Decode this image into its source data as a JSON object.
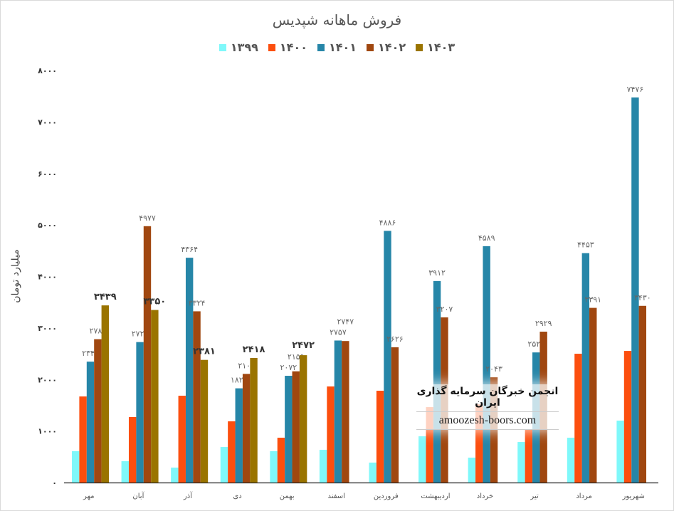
{
  "chart_data": {
    "type": "bar",
    "title": "فروش ماهانه شپدیس",
    "xlabel": "",
    "ylabel": "میلیارد تومان",
    "ylim": [
      0,
      8000
    ],
    "yticks": [
      0,
      1000,
      2000,
      3000,
      4000,
      5000,
      6000,
      7000,
      8000
    ],
    "grid": false,
    "legend_position": "top",
    "categories": [
      "مهر",
      "آبان",
      "آذر",
      "دی",
      "بهمن",
      "اسفند",
      "فروردین",
      "اردیبهشت",
      "خرداد",
      "تیر",
      "مرداد",
      "شهریور"
    ],
    "series": [
      {
        "name": "1399",
        "legend_label": "۱۳۹۹",
        "color": "#7ff8fa",
        "show_labels": false,
        "values": [
          608,
          414,
          290,
          690,
          608,
          635,
          387,
          898,
          483,
          787,
          870,
          1202
        ]
      },
      {
        "name": "1400",
        "legend_label": "۱۴۰۰",
        "color": "#fc4e0e",
        "show_labels": false,
        "values": [
          1671,
          1271,
          1685,
          1188,
          870,
          1865,
          1782,
          1464,
          1519,
          1036,
          2500,
          2555
        ]
      },
      {
        "name": "1401",
        "legend_label": "۱۴۰۱",
        "color": "#2686a8",
        "show_labels": true,
        "values": [
          2347,
          2727,
          4364,
          1829,
          2072,
          2757,
          4886,
          3912,
          4589,
          2526,
          4453,
          7476
        ]
      },
      {
        "name": "1402",
        "legend_label": "۱۴۰۲",
        "color": "#a04710",
        "show_labels": true,
        "values": [
          2783,
          4977,
          3324,
          2109,
          2159,
          2747,
          2626,
          3207,
          2043,
          2929,
          3391,
          3430
        ]
      },
      {
        "name": "1403",
        "legend_label": "۱۴۰۳",
        "color": "#9a7400",
        "show_labels": true,
        "bold_labels": true,
        "values": [
          3439,
          3350,
          2381,
          2418,
          2472,
          null,
          null,
          null,
          null,
          null,
          null,
          null
        ]
      }
    ]
  },
  "watermark": {
    "line1": "انجمن خبرگان سرمایه گذاری ایران",
    "line2": "amoozesh-boors.com"
  }
}
